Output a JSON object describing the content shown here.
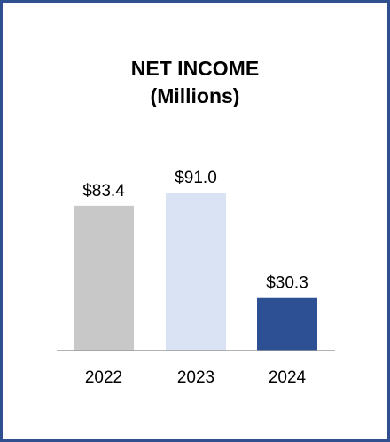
{
  "chart_data": {
    "type": "bar",
    "title_lines": [
      "NET INCOME",
      "(Millions)"
    ],
    "categories": [
      "2022",
      "2023",
      "2024"
    ],
    "values": [
      83.4,
      91.0,
      30.3
    ],
    "value_labels": [
      "$83.4",
      "$91.0",
      "$30.3"
    ],
    "colors": [
      "#c8c8c8",
      "#d9e3f3",
      "#2d4f94"
    ],
    "ylim": [
      0,
      100
    ],
    "grid": false,
    "legend": "none"
  },
  "frame_color": "#2f4f8f"
}
